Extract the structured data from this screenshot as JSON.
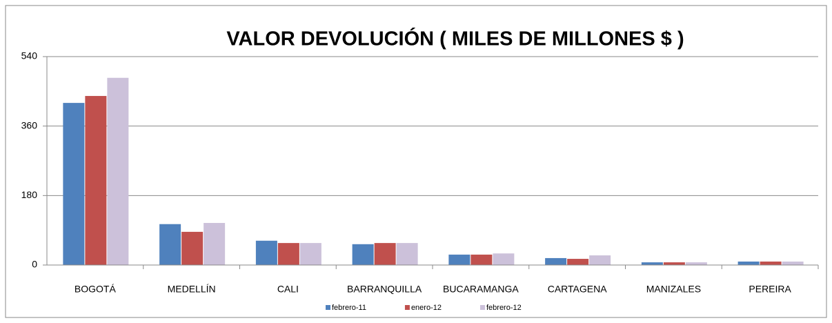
{
  "chart_data": {
    "type": "bar",
    "title": "VALOR DEVOLUCIÓN ( MILES DE MILLONES $ )",
    "categories": [
      "BOGOTÁ",
      "MEDELLÍN",
      "CALI",
      "BARRANQUILLA",
      "BUCARAMANGA",
      "CARTAGENA",
      "MANIZALES",
      "PEREIRA"
    ],
    "series": [
      {
        "name": "febrero-11",
        "color": "#4f81bd",
        "values": [
          420,
          106,
          63,
          54,
          27,
          18,
          7,
          9
        ]
      },
      {
        "name": "enero-12",
        "color": "#c0504d",
        "values": [
          438,
          86,
          57,
          57,
          27,
          16,
          7,
          9
        ]
      },
      {
        "name": "febrero-12",
        "color": "#ccc1da",
        "values": [
          485,
          109,
          57,
          57,
          30,
          25,
          7,
          9
        ]
      }
    ],
    "ylim": [
      0,
      540
    ],
    "yticks": [
      0,
      180,
      360,
      540
    ],
    "grid": true,
    "legend": "bottom"
  }
}
